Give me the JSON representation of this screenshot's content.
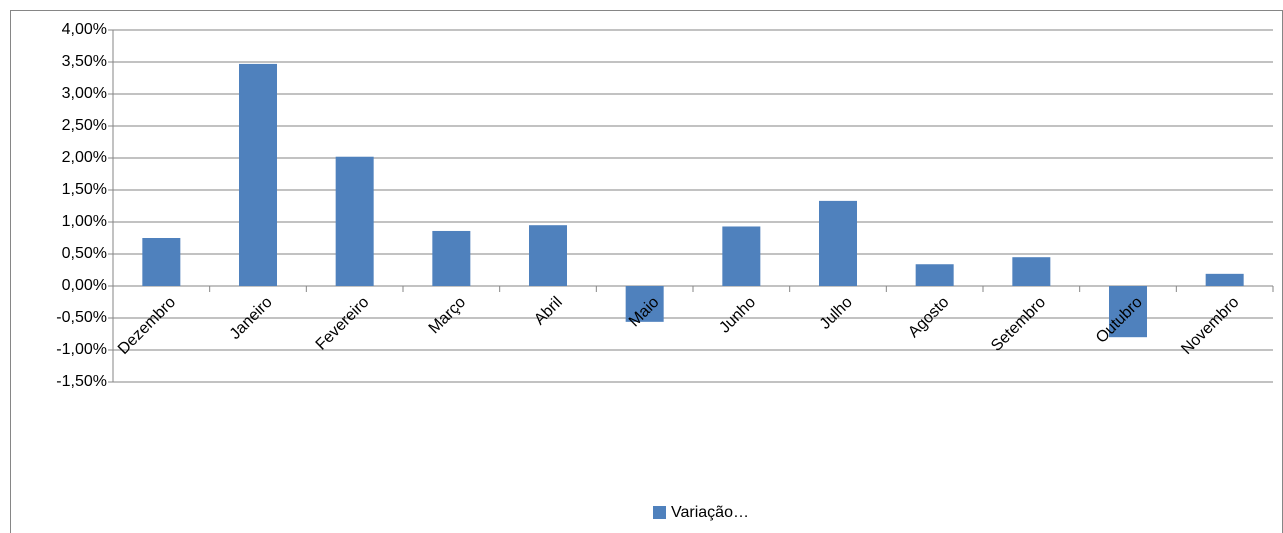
{
  "chart_data": {
    "type": "bar",
    "categories": [
      "Dezembro",
      "Janeiro",
      "Fevereiro",
      "Março",
      "Abril",
      "Maio",
      "Junho",
      "Julho",
      "Agosto",
      "Setembro",
      "Outubro",
      "Novembro"
    ],
    "series": [
      {
        "name": "Variação…",
        "color": "#4f81bd",
        "values": [
          0.75,
          3.47,
          2.02,
          0.86,
          0.95,
          -0.56,
          0.93,
          1.33,
          0.34,
          0.45,
          -0.8,
          0.19
        ]
      }
    ],
    "ylim": [
      -1.5,
      4
    ],
    "yticks": [
      {
        "value": -1.5,
        "label": "-1,50%"
      },
      {
        "value": -1,
        "label": "-1,00%"
      },
      {
        "value": -0.5,
        "label": "-0,50%"
      },
      {
        "value": 0,
        "label": "0,00%"
      },
      {
        "value": 0.5,
        "label": "0,50%"
      },
      {
        "value": 1,
        "label": "1,00%"
      },
      {
        "value": 1.5,
        "label": "1,50%"
      },
      {
        "value": 2,
        "label": "2,00%"
      },
      {
        "value": 2.5,
        "label": "2,50%"
      },
      {
        "value": 3,
        "label": "3,00%"
      },
      {
        "value": 3.5,
        "label": "3,50%"
      },
      {
        "value": 4,
        "label": "4,00%"
      }
    ],
    "grid": true,
    "legend": "bottom"
  }
}
